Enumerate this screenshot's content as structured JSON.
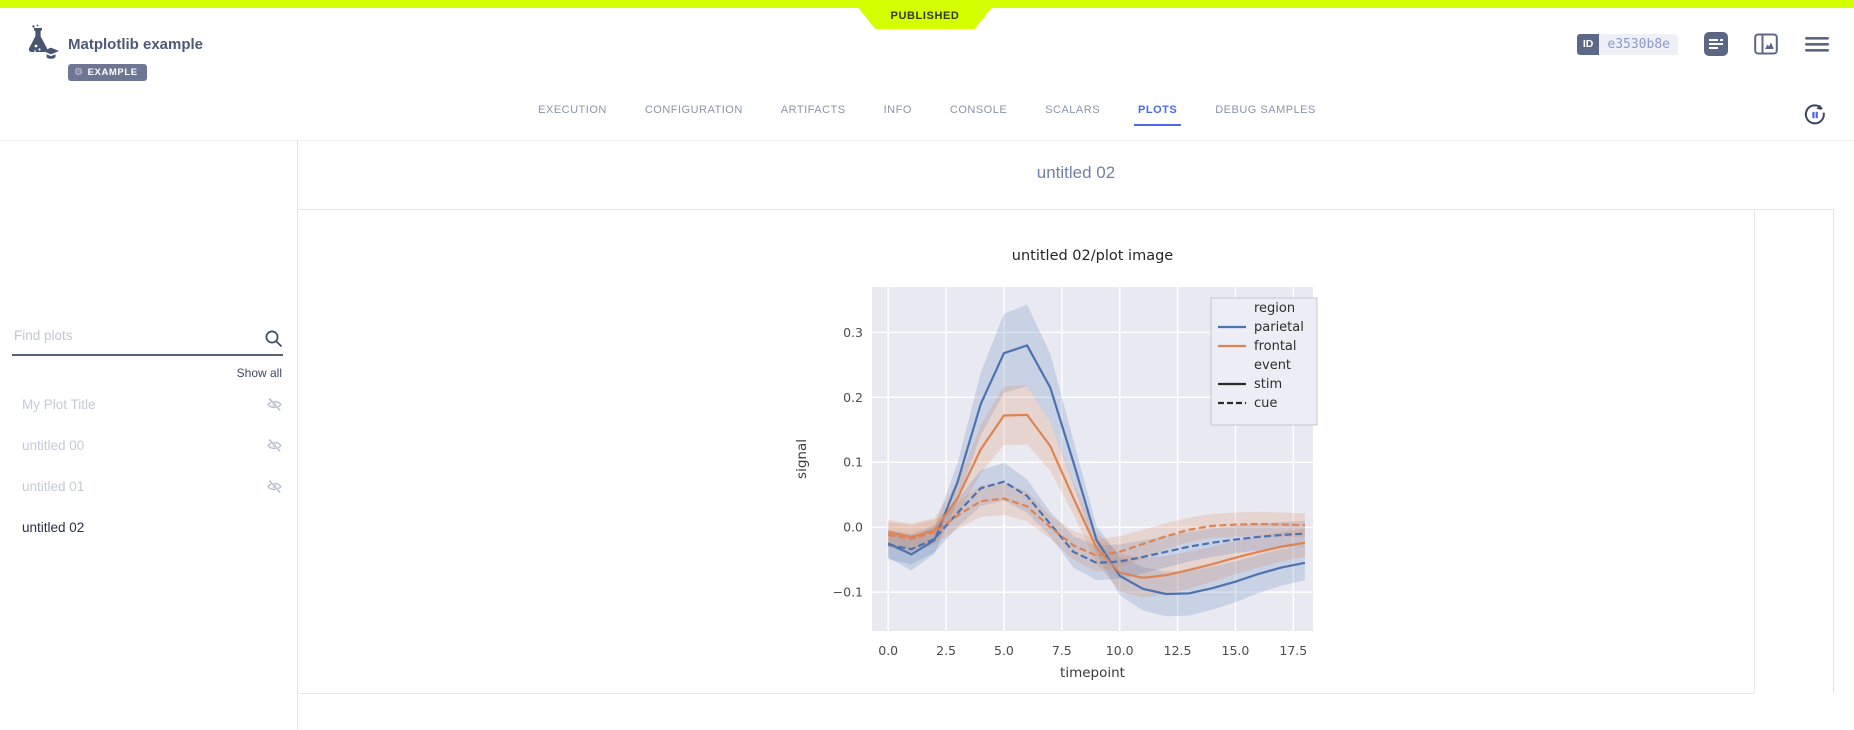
{
  "header": {
    "status_ribbon": "PUBLISHED",
    "title": "Matplotlib example",
    "type_badge": "EXAMPLE",
    "id_label": "ID",
    "id_value": "e3530b8e"
  },
  "icons": {
    "logo": "flask-graduate-logo-icon",
    "details": "details-panel-icon",
    "layout": "layout-panel-icon",
    "menu": "hamburger-menu-icon",
    "refresh": "auto-refresh-icon",
    "search": "search-icon",
    "hidden": "eye-off-icon"
  },
  "tabs": [
    {
      "label": "EXECUTION",
      "active": false
    },
    {
      "label": "CONFIGURATION",
      "active": false
    },
    {
      "label": "ARTIFACTS",
      "active": false
    },
    {
      "label": "INFO",
      "active": false
    },
    {
      "label": "CONSOLE",
      "active": false
    },
    {
      "label": "SCALARS",
      "active": false
    },
    {
      "label": "PLOTS",
      "active": true
    },
    {
      "label": "DEBUG SAMPLES",
      "active": false
    }
  ],
  "sidebar": {
    "search_placeholder": "Find plots",
    "show_all": "Show all",
    "items": [
      {
        "label": "My Plot Title",
        "hidden": true,
        "selected": false
      },
      {
        "label": "untitled 00",
        "hidden": true,
        "selected": false
      },
      {
        "label": "untitled 01",
        "hidden": true,
        "selected": false
      },
      {
        "label": "untitled 02",
        "hidden": false,
        "selected": true
      }
    ]
  },
  "main": {
    "section_title": "untitled 02"
  },
  "colors": {
    "accent_lime": "#d4ff00",
    "accent_blue": "#4a6be5",
    "slate": "#5c6685",
    "chart_blue": "#4C72B0",
    "chart_orange": "#DD8452",
    "plot_bg": "#e9e9f2"
  },
  "chart_data": {
    "type": "line",
    "title": "untitled 02/plot image",
    "xlabel": "timepoint",
    "ylabel": "signal",
    "x": [
      0,
      1,
      2,
      3,
      4,
      5,
      6,
      7,
      8,
      9,
      10,
      11,
      12,
      13,
      14,
      15,
      16,
      17,
      18
    ],
    "series": [
      {
        "name": "parietal, stim",
        "region": "parietal",
        "event": "stim",
        "color": "#4C72B0",
        "dash": "solid",
        "values": [
          -0.025,
          -0.042,
          -0.02,
          0.07,
          0.19,
          0.268,
          0.28,
          0.215,
          0.1,
          -0.02,
          -0.075,
          -0.095,
          -0.103,
          -0.102,
          -0.094,
          -0.084,
          -0.072,
          -0.062,
          -0.055
        ]
      },
      {
        "name": "frontal, stim",
        "region": "frontal",
        "event": "stim",
        "color": "#DD8452",
        "dash": "solid",
        "values": [
          -0.008,
          -0.015,
          -0.005,
          0.045,
          0.12,
          0.172,
          0.173,
          0.125,
          0.045,
          -0.032,
          -0.07,
          -0.078,
          -0.074,
          -0.066,
          -0.057,
          -0.047,
          -0.038,
          -0.03,
          -0.024
        ]
      },
      {
        "name": "parietal, cue",
        "region": "parietal",
        "event": "cue",
        "color": "#4C72B0",
        "dash": "dashed",
        "values": [
          -0.027,
          -0.034,
          -0.018,
          0.022,
          0.06,
          0.07,
          0.048,
          0.005,
          -0.038,
          -0.055,
          -0.053,
          -0.046,
          -0.038,
          -0.03,
          -0.024,
          -0.019,
          -0.015,
          -0.012,
          -0.01
        ]
      },
      {
        "name": "frontal, cue",
        "region": "frontal",
        "event": "cue",
        "color": "#DD8452",
        "dash": "dashed",
        "values": [
          -0.012,
          -0.018,
          -0.008,
          0.018,
          0.04,
          0.044,
          0.032,
          0.0,
          -0.028,
          -0.044,
          -0.038,
          -0.026,
          -0.014,
          -0.004,
          0.002,
          0.004,
          0.005,
          0.004,
          0.003
        ]
      }
    ],
    "band": {
      "base": 0.018,
      "scale": 0.16,
      "opacity": 0.2
    },
    "legend": [
      {
        "label": "region",
        "type": "header"
      },
      {
        "label": "parietal",
        "type": "line",
        "color": "#4C72B0",
        "dash": "solid"
      },
      {
        "label": "frontal",
        "type": "line",
        "color": "#DD8452",
        "dash": "solid"
      },
      {
        "label": "event",
        "type": "header"
      },
      {
        "label": "stim",
        "type": "line",
        "color": "#2b2b2b",
        "dash": "solid"
      },
      {
        "label": "cue",
        "type": "line",
        "color": "#2b2b2b",
        "dash": "dashed"
      }
    ],
    "legend_position": "upper right",
    "grid": true,
    "background": "#e9e9f2",
    "xlim": [
      -0.7,
      18.35
    ],
    "ylim": [
      -0.16,
      0.37
    ],
    "xtick_values": [
      0,
      2.5,
      5,
      7.5,
      10,
      12.5,
      15,
      17.5
    ],
    "xtick_labels": [
      "0.0",
      "2.5",
      "5.0",
      "7.5",
      "10.0",
      "12.5",
      "15.0",
      "17.5"
    ],
    "ytick_values": [
      -0.1,
      0.0,
      0.1,
      0.2,
      0.3
    ],
    "ytick_labels": [
      "−0.1",
      "0.0",
      "0.1",
      "0.2",
      "0.3"
    ]
  }
}
